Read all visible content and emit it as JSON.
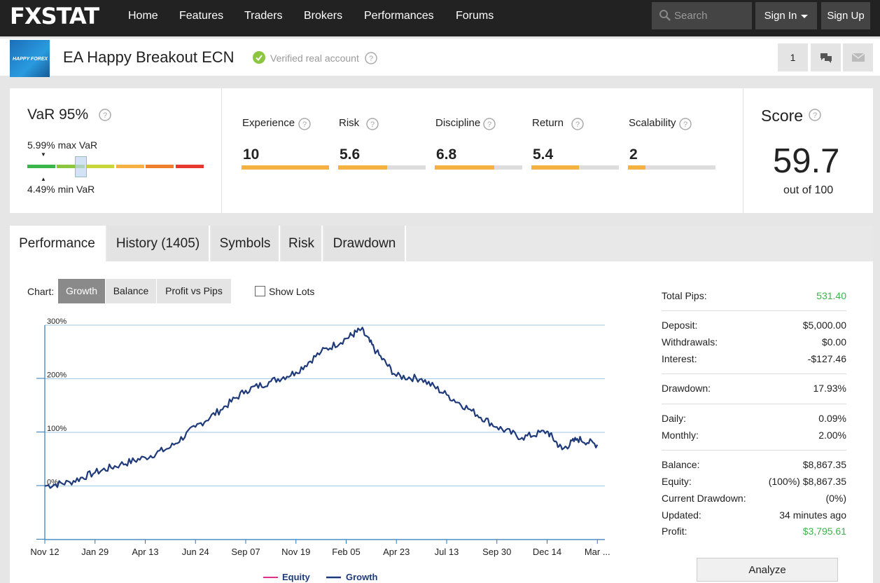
{
  "nav": {
    "logo": "FXSTAT",
    "items": [
      "Home",
      "Features",
      "Traders",
      "Brokers",
      "Performances",
      "Forums"
    ],
    "search_placeholder": "Search",
    "sign_in": "Sign In",
    "sign_up": "Sign Up"
  },
  "account": {
    "logo_text": "HAPPY FOREX",
    "title": "EA Happy Breakout ECN",
    "verified": "Verified real account",
    "follow_count": "1"
  },
  "var": {
    "title": "VaR 95%",
    "max": "5.99% max VaR",
    "min": "4.49% min VaR",
    "colors": [
      "#3ab54a",
      "#8cc63f",
      "#c9d63a",
      "#f5b141",
      "#f07f2c",
      "#e8392e"
    ]
  },
  "metrics": [
    {
      "label": "Experience",
      "value": "10",
      "fill": 1.0
    },
    {
      "label": "Risk",
      "value": "5.6",
      "fill": 0.56
    },
    {
      "label": "Discipline",
      "value": "6.8",
      "fill": 0.68
    },
    {
      "label": "Return",
      "value": "5.4",
      "fill": 0.54
    },
    {
      "label": "Scalability",
      "value": "2",
      "fill": 0.2
    }
  ],
  "score": {
    "title": "Score",
    "value": "59.7",
    "sub": "out of 100"
  },
  "tabs": [
    "Performance",
    "History (1405)",
    "Symbols",
    "Risk",
    "Drawdown"
  ],
  "chart_controls": {
    "label": "Chart:",
    "buttons": [
      "Growth",
      "Balance",
      "Profit vs Pips"
    ],
    "show_lots": "Show Lots"
  },
  "chart_data": {
    "type": "line",
    "title": "",
    "xlabel": "",
    "ylabel": "",
    "ylim": [
      -100,
      300
    ],
    "y_ticks": [
      "300%",
      "200%",
      "100%",
      "0%"
    ],
    "x_ticks": [
      "Nov 12",
      "Jan 29",
      "Apr 13",
      "Jun 24",
      "Sep 07",
      "Nov 19",
      "Feb 05",
      "Apr 23",
      "Jul 13",
      "Sep 30",
      "Dec 14",
      "Mar ..."
    ],
    "legend": [
      "Equity",
      "Growth"
    ],
    "legend_position": "bottom",
    "series": [
      {
        "name": "Growth",
        "color": "#1f3a7a",
        "x": [
          0,
          0.5,
          1,
          1.5,
          2,
          2.5,
          3,
          3.5,
          4,
          4.5,
          5,
          5.5,
          6,
          6.3,
          6.6,
          7,
          7.5,
          8,
          8.5,
          9,
          9.5,
          10,
          10.3,
          10.6,
          11
        ],
        "values": [
          0,
          7,
          25,
          40,
          53,
          72,
          110,
          142,
          178,
          195,
          212,
          250,
          275,
          292,
          250,
          205,
          200,
          170,
          140,
          110,
          90,
          102,
          68,
          88,
          77
        ]
      },
      {
        "name": "Equity",
        "color": "#e0308a",
        "x": [],
        "values": []
      }
    ]
  },
  "stats": [
    {
      "label": "Total Pips:",
      "value": "531.40",
      "green": true
    },
    {
      "label": "Deposit:",
      "value": "$5,000.00"
    },
    {
      "label": "Withdrawals:",
      "value": "$0.00"
    },
    {
      "label": "Interest:",
      "value": "-$127.46"
    },
    {
      "label": "Drawdown:",
      "value": "17.93%"
    },
    {
      "label": "Daily:",
      "value": "0.09%"
    },
    {
      "label": "Monthly:",
      "value": "2.00%"
    },
    {
      "label": "Balance:",
      "value": "$8,867.35"
    },
    {
      "label": "Equity:",
      "value": "(100%) $8,867.35"
    },
    {
      "label": "Current Drawdown:",
      "value": "(0%)"
    },
    {
      "label": "Updated:",
      "value": "34 minutes ago"
    },
    {
      "label": "Profit:",
      "value": "$3,795.61",
      "green": true
    }
  ],
  "analyze": "Analyze"
}
